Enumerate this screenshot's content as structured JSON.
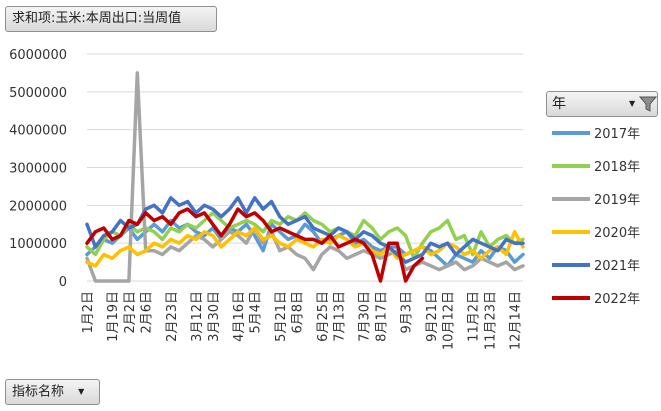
{
  "pivot": {
    "value_field_label": "求和项:玉米:本周出口:当周值",
    "axis_field_label": "指标名称",
    "legend_field_label": "年"
  },
  "icons": {
    "dropdown": "dropdown-arrow-icon",
    "filter": "filter-funnel-icon"
  },
  "chart_data": {
    "type": "line",
    "title": "",
    "xlabel": "",
    "ylabel": "",
    "ylim": [
      0,
      6000000
    ],
    "yticks": [
      0,
      1000000,
      2000000,
      3000000,
      4000000,
      5000000,
      6000000
    ],
    "ytick_labels": [
      "0",
      "1000000",
      "2000000",
      "3000000",
      "4000000",
      "5000000",
      "6000000"
    ],
    "x_count": 53,
    "xtick_labels": [
      {
        "i": 0,
        "label": "1月2日"
      },
      {
        "i": 3,
        "label": "1月19日"
      },
      {
        "i": 5,
        "label": "2月2日"
      },
      {
        "i": 7,
        "label": "2月6日"
      },
      {
        "i": 10,
        "label": "2月23日"
      },
      {
        "i": 13,
        "label": "3月12日"
      },
      {
        "i": 15,
        "label": "3月30日"
      },
      {
        "i": 18,
        "label": "4月16日"
      },
      {
        "i": 20,
        "label": "5月4日"
      },
      {
        "i": 23,
        "label": "5月21日"
      },
      {
        "i": 25,
        "label": "6月8日"
      },
      {
        "i": 28,
        "label": "6月25日"
      },
      {
        "i": 30,
        "label": "7月13日"
      },
      {
        "i": 33,
        "label": "7月30日"
      },
      {
        "i": 35,
        "label": "8月17日"
      },
      {
        "i": 38,
        "label": "9月3日"
      },
      {
        "i": 41,
        "label": "9月21日"
      },
      {
        "i": 43,
        "label": "10月12日"
      },
      {
        "i": 46,
        "label": "11月2日"
      },
      {
        "i": 48,
        "label": "11月23日"
      },
      {
        "i": 51,
        "label": "12月14日"
      }
    ],
    "grid": true,
    "legend_position": "right",
    "series": [
      {
        "name": "2017年",
        "color": "#5b9bd5",
        "values": [
          700000,
          900000,
          1100000,
          1000000,
          1200000,
          1400000,
          1100000,
          1300000,
          1500000,
          1300000,
          1600000,
          1400000,
          1500000,
          1300000,
          1200000,
          1400000,
          1100000,
          1400000,
          1300000,
          1500000,
          1200000,
          800000,
          1500000,
          1300000,
          1100000,
          1200000,
          1500000,
          1300000,
          1000000,
          1100000,
          1200000,
          1300000,
          1000000,
          1100000,
          900000,
          800000,
          900000,
          900000,
          700000,
          800000,
          900000,
          800000,
          600000,
          400000,
          700000,
          600000,
          500000,
          800000,
          600000,
          900000,
          800000,
          500000,
          700000
        ]
      },
      {
        "name": "2018年",
        "color": "#92d050",
        "values": [
          900000,
          700000,
          1100000,
          1300000,
          1200000,
          1500000,
          1300000,
          1400000,
          1300000,
          1100000,
          1400000,
          1300000,
          1500000,
          1400000,
          1600000,
          1800000,
          1600000,
          1400000,
          1500000,
          1600000,
          1500000,
          1300000,
          1600000,
          1500000,
          1700000,
          1600000,
          1800000,
          1600000,
          1500000,
          1300000,
          1400000,
          1300000,
          1200000,
          1600000,
          1400000,
          1100000,
          1300000,
          1400000,
          1200000,
          600000,
          1000000,
          1300000,
          1400000,
          1600000,
          1100000,
          1200000,
          700000,
          1300000,
          900000,
          1100000,
          1200000,
          1000000,
          1100000
        ]
      },
      {
        "name": "2019年",
        "color": "#a5a5a5",
        "values": [
          600000,
          0,
          0,
          0,
          0,
          0,
          5500000,
          800000,
          800000,
          700000,
          900000,
          800000,
          1000000,
          1200000,
          1100000,
          900000,
          1100000,
          1300000,
          1200000,
          1000000,
          1400000,
          1000000,
          1300000,
          800000,
          900000,
          700000,
          600000,
          300000,
          700000,
          900000,
          800000,
          600000,
          700000,
          800000,
          700000,
          600000,
          700000,
          800000,
          300000,
          400000,
          500000,
          400000,
          300000,
          400000,
          500000,
          300000,
          400000,
          600000,
          500000,
          400000,
          500000,
          300000,
          400000
        ]
      },
      {
        "name": "2020年",
        "color": "#ffc000",
        "values": [
          500000,
          400000,
          700000,
          600000,
          800000,
          900000,
          700000,
          800000,
          1000000,
          900000,
          1100000,
          1000000,
          1200000,
          1100000,
          1300000,
          1200000,
          900000,
          1100000,
          1300000,
          1200000,
          1400000,
          1100000,
          1200000,
          1000000,
          900000,
          1100000,
          1000000,
          900000,
          1100000,
          1000000,
          1200000,
          1100000,
          900000,
          1000000,
          800000,
          700000,
          900000,
          600000,
          700000,
          800000,
          900000,
          700000,
          800000,
          1000000,
          900000,
          700000,
          800000,
          600000,
          800000,
          900000,
          700000,
          1300000,
          900000
        ]
      },
      {
        "name": "2021年",
        "color": "#4472c4",
        "values": [
          1500000,
          900000,
          1200000,
          1300000,
          1600000,
          1400000,
          1500000,
          1900000,
          2000000,
          1800000,
          2200000,
          2000000,
          2100000,
          1800000,
          2000000,
          1900000,
          1700000,
          1900000,
          2200000,
          1800000,
          2200000,
          1900000,
          2100000,
          1700000,
          1500000,
          1600000,
          1700000,
          1400000,
          1300000,
          1200000,
          1400000,
          1300000,
          1100000,
          1300000,
          1200000,
          1000000,
          900000,
          700000,
          500000,
          600000,
          700000,
          1000000,
          900000,
          1000000,
          700000,
          900000,
          1100000,
          1000000,
          900000,
          800000,
          1100000,
          1000000,
          1000000
        ]
      },
      {
        "name": "2022年",
        "color": "#c00000",
        "values": [
          1000000,
          1300000,
          1400000,
          1100000,
          1200000,
          1600000,
          1500000,
          1800000,
          1600000,
          1700000,
          1500000,
          1800000,
          1900000,
          1700000,
          1800000,
          1500000,
          1200000,
          1500000,
          1900000,
          1700000,
          1800000,
          1600000,
          1300000,
          1400000,
          1300000,
          1200000,
          1100000,
          1100000,
          1000000,
          1200000,
          900000,
          1000000,
          1100000,
          1000000,
          700000,
          0,
          1000000,
          1000000,
          0,
          400000,
          600000
        ]
      }
    ]
  }
}
